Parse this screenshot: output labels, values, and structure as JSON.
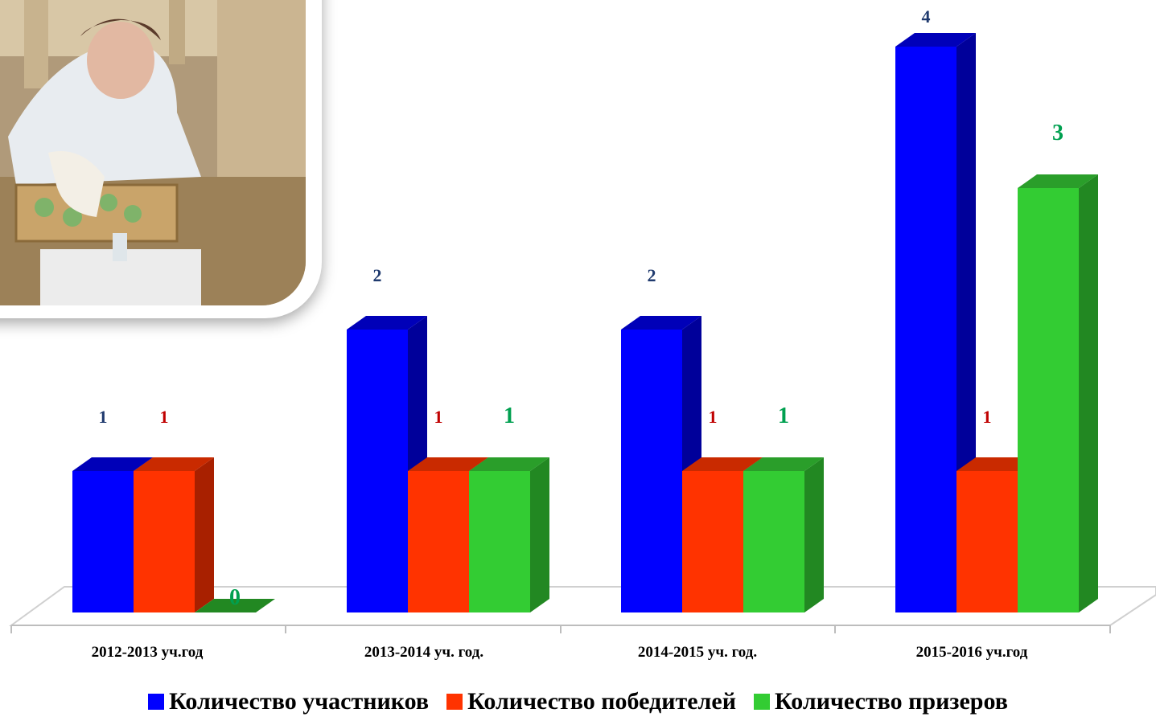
{
  "chart_data": {
    "type": "bar",
    "categories": [
      "2012-2013 уч.год",
      "2013-2014 уч. год.",
      "2014-2015 уч. год.",
      "2015-2016 уч.год"
    ],
    "series": [
      {
        "name": "Количество участников",
        "values": [
          1,
          2,
          2,
          4
        ],
        "color": "#0000ff",
        "side_color": "#00009a",
        "top_color": "#0000b8",
        "label_color": "#1f3a6e"
      },
      {
        "name": "Количество победителей",
        "values": [
          1,
          1,
          1,
          1
        ],
        "color": "#ff3300",
        "side_color": "#a82000",
        "top_color": "#c92a00",
        "label_color": "#c00000"
      },
      {
        "name": "Количество призеров",
        "values": [
          0,
          1,
          1,
          3
        ],
        "color": "#33cc33",
        "side_color": "#228822",
        "top_color": "#2a9e2a",
        "label_color": "#00a050"
      }
    ],
    "ylim": [
      0,
      4
    ],
    "grid": false,
    "legend_position": "bottom",
    "value_labels": [
      [
        "1",
        "2",
        "2",
        "4"
      ],
      [
        "1",
        "1",
        "1",
        "1"
      ],
      [
        "0",
        "1",
        "1",
        "3"
      ]
    ]
  },
  "photo": {
    "description_icon": "photo-icon"
  }
}
